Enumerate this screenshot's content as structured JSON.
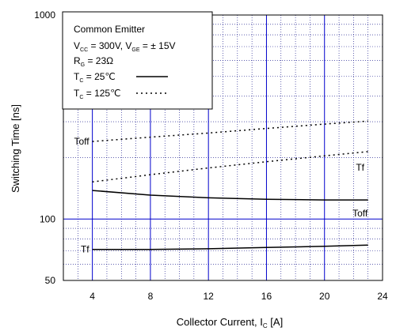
{
  "chart_data": {
    "type": "line",
    "xlabel": "Collector Current, I",
    "xlabel_sub": "C",
    "xlabel_unit": " [A]",
    "ylabel": "Switching Time [ns]",
    "xlim": [
      2,
      24
    ],
    "ylim": [
      50,
      1000
    ],
    "y_scale": "log",
    "grid": true,
    "x_ticks": [
      "4",
      "8",
      "12",
      "16",
      "20",
      "24"
    ],
    "y_ticks": [
      "50",
      "100",
      "1000"
    ],
    "legend": {
      "position": "top-left",
      "title": "Common Emitter",
      "vcc_sym": "V",
      "vcc_sub": "CC",
      "vcc_val": " = 300V, V",
      "vge_sub": "GE",
      "vge_val": " = ± 15V",
      "rg_sym": "R",
      "rg_sub": "G",
      "rg_val": " = 23Ω",
      "tc1_sym": "T",
      "tc1_sub": "C",
      "tc1_val": " = 25℃",
      "tc2_sym": "T",
      "tc2_sub": "C",
      "tc2_val": " = 125℃"
    },
    "series": [
      {
        "name": "Toff",
        "condition": "125℃",
        "style": "dotted",
        "x": [
          4,
          8,
          12,
          16,
          20,
          23
        ],
        "y": [
          240,
          252,
          264,
          278,
          292,
          302
        ],
        "label_side": "left"
      },
      {
        "name": "Tf",
        "condition": "125℃",
        "style": "dotted",
        "x": [
          4,
          8,
          12,
          16,
          20,
          23
        ],
        "y": [
          152,
          165,
          178,
          191,
          204,
          214
        ],
        "label_side": "right"
      },
      {
        "name": "Toff",
        "condition": "25℃",
        "style": "solid",
        "x": [
          4,
          8,
          12,
          16,
          20,
          23
        ],
        "y": [
          138,
          131,
          127,
          125,
          124,
          124
        ],
        "label_side": "right"
      },
      {
        "name": "Tf",
        "condition": "25℃",
        "style": "solid",
        "x": [
          4,
          8,
          12,
          16,
          20,
          23
        ],
        "y": [
          71,
          71,
          71.5,
          72.5,
          73.5,
          74.5
        ],
        "label_side": "left"
      }
    ]
  }
}
